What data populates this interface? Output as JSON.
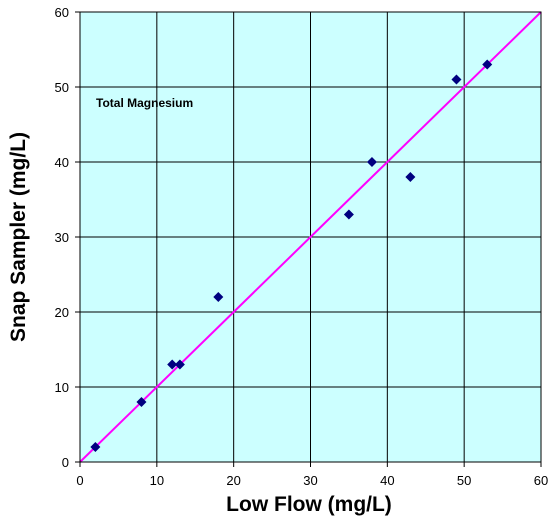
{
  "chart_data": {
    "type": "scatter",
    "title": "",
    "annotation": "Total Magnesium",
    "xlabel": "Low Flow (mg/L)",
    "ylabel": "Snap Sampler (mg/L)",
    "xlim": [
      0,
      60
    ],
    "ylim": [
      0,
      60
    ],
    "xticks": [
      "0",
      "10",
      "20",
      "30",
      "40",
      "50",
      "60"
    ],
    "yticks": [
      "0",
      "10",
      "20",
      "30",
      "40",
      "50",
      "60"
    ],
    "grid": true,
    "legend": "none",
    "colors": {
      "plot_background": "#ccffff",
      "marker": "#000080",
      "reference_line": "#ff00ff",
      "grid": "#000000"
    },
    "reference_line": {
      "from": [
        0,
        0
      ],
      "to": [
        60,
        60
      ]
    },
    "series": [
      {
        "points": [
          [
            2,
            2
          ],
          [
            8,
            8
          ],
          [
            12,
            13
          ],
          [
            13,
            13
          ],
          [
            18,
            22
          ],
          [
            35,
            33
          ],
          [
            38,
            40
          ],
          [
            43,
            38
          ],
          [
            49,
            51
          ],
          [
            53,
            53
          ]
        ]
      }
    ]
  }
}
